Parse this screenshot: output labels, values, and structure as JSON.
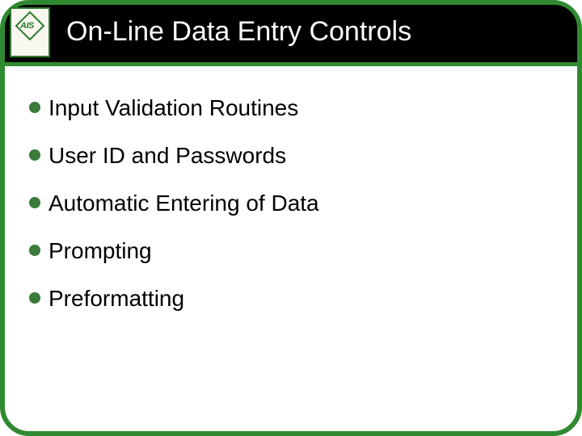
{
  "colors": {
    "border_green": "#2f8a2f",
    "bullet_green": "#3a7a3a",
    "logo_border": "#2f7a2f",
    "logo_text": "#2f7a2f",
    "header_underline": "#2f8a2f"
  },
  "logo": {
    "label": "AIS"
  },
  "title": "On-Line Data Entry Controls",
  "bullets": [
    {
      "text": "Input Validation Routines"
    },
    {
      "text": "User ID and Passwords"
    },
    {
      "text": "Automatic Entering of Data"
    },
    {
      "text": "Prompting"
    },
    {
      "text": "Preformatting"
    }
  ],
  "typography": {
    "title_fontsize": 34,
    "bullet_fontsize": 28
  }
}
